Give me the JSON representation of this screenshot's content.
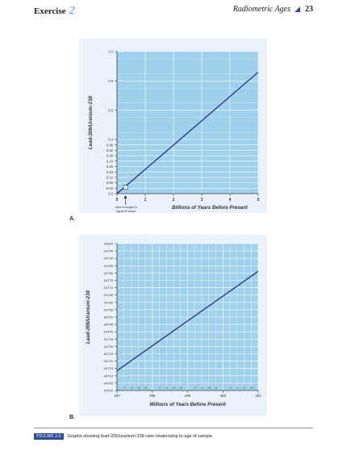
{
  "header": {
    "left_label": "Exercise",
    "left_number": "2",
    "right_title": "Radiometric Ages",
    "page_number": "23"
  },
  "panel_labels": {
    "a": "A.",
    "b": "B."
  },
  "annotation": {
    "text_lines": [
      "area enlarged in",
      "figure B below"
    ]
  },
  "caption": {
    "tag": "FIGURE 2.6",
    "text": "Graphs showing lead-206/uranium-238 ratio relationship to age of sample."
  },
  "colors": {
    "plot_bg": "#9fd0ec",
    "line": "#27327f",
    "grid": "#ffffff",
    "accent": "#2e4c9a"
  },
  "chart_data": [
    {
      "id": "A",
      "type": "line",
      "title": "",
      "xlabel": "Billions of Years Before Present",
      "ylabel": "Lead-206/Uranium-238",
      "xlim": [
        0,
        5
      ],
      "ylim": [
        0,
        1.0
      ],
      "x_ticks": [
        0,
        1,
        2,
        3,
        4,
        5
      ],
      "x_tick_labels": [
        "0",
        "1",
        "2",
        "3",
        "4",
        "5"
      ],
      "y_ticks": [
        0,
        0.04,
        0.08,
        0.12,
        0.16,
        0.2,
        0.24,
        0.28,
        0.32,
        0.36,
        0.4,
        0.6,
        0.8,
        1.0
      ],
      "y_tick_labels": [
        "0.0",
        "0.04",
        "0.08",
        "0.12",
        "0.16",
        "0.20",
        "0.24",
        "0.28",
        "0.32",
        "0.36",
        "0.4",
        "0.6",
        "0.8",
        "1.0"
      ],
      "grid": true,
      "series": [
        {
          "x": [
            0,
            5
          ],
          "y": [
            0,
            0.86
          ]
        }
      ],
      "highlight": {
        "x": 0.3,
        "y": 0.046
      }
    },
    {
      "id": "B",
      "type": "line",
      "title": "",
      "xlabel": "Millions of Years Before Present",
      "ylabel": "Lead-206/Uranium-238",
      "xlim": [
        297,
        301
      ],
      "ylim": [
        0.047,
        0.048
      ],
      "x_ticks": [
        297,
        298,
        299,
        300,
        301
      ],
      "x_tick_labels": [
        "297",
        "298",
        "299",
        "300",
        "301"
      ],
      "x_minor_labels": [
        ".2",
        ".4",
        ".6",
        ".8"
      ],
      "y_ticks": [
        0.047,
        0.04705,
        0.0471,
        0.04715,
        0.0472,
        0.04725,
        0.0473,
        0.04735,
        0.0474,
        0.04745,
        0.0475,
        0.04755,
        0.0476,
        0.04765,
        0.0477,
        0.04775,
        0.0478,
        0.04785,
        0.0479,
        0.04795,
        0.048
      ],
      "y_tick_labels": [
        ".04700",
        ".04705",
        ".04710",
        ".04715",
        ".04720",
        ".04725",
        ".04730",
        ".04735",
        ".04740",
        ".04745",
        ".04750",
        ".04755",
        ".04760",
        ".04765",
        ".04770",
        ".04775",
        ".04780",
        ".04785",
        ".04790",
        ".04795",
        ".04800"
      ],
      "grid": true,
      "series": [
        {
          "x": [
            297,
            301
          ],
          "y": [
            0.047135,
            0.047812
          ]
        }
      ]
    }
  ]
}
